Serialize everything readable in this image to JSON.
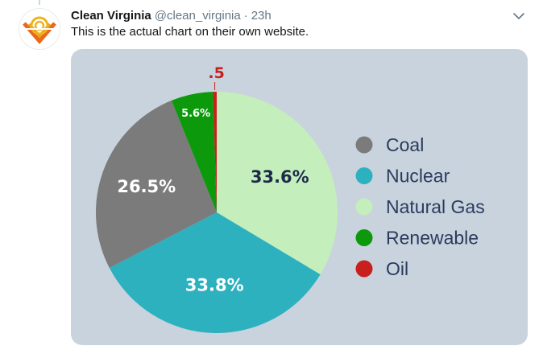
{
  "tweet": {
    "display_name": "Clean Virginia",
    "handle": "@clean_virginia",
    "separator": "·",
    "time": "23h",
    "text": "This is the actual chart on their own website.",
    "avatar_icon": "clean-virginia-logo-icon",
    "menu_icon": "chevron-down-icon"
  },
  "chart_data": {
    "type": "pie",
    "title": "",
    "labels": [
      "Natural Gas",
      "Nuclear",
      "Coal",
      "Renewable",
      "Oil"
    ],
    "values": [
      33.6,
      33.8,
      26.5,
      5.6,
      0.5
    ],
    "value_labels": [
      "33.6%",
      "33.8%",
      "26.5%",
      "5.6%",
      ".5"
    ],
    "colors": [
      "#c4eebb",
      "#2db1bf",
      "#7b7b7b",
      "#0c9a0c",
      "#c8201c"
    ],
    "label_colors": [
      "#1c2a4a",
      "#ffffff",
      "#ffffff",
      "#ffffff",
      "#c8201c"
    ],
    "legend": {
      "placement": "right",
      "entries": [
        {
          "label": "Coal",
          "color": "#7b7b7b"
        },
        {
          "label": "Nuclear",
          "color": "#2db1bf"
        },
        {
          "label": "Natural Gas",
          "color": "#c4eebb"
        },
        {
          "label": "Renewable",
          "color": "#0c9a0c"
        },
        {
          "label": "Oil",
          "color": "#c8201c"
        }
      ]
    },
    "background": "#c9d3de"
  }
}
